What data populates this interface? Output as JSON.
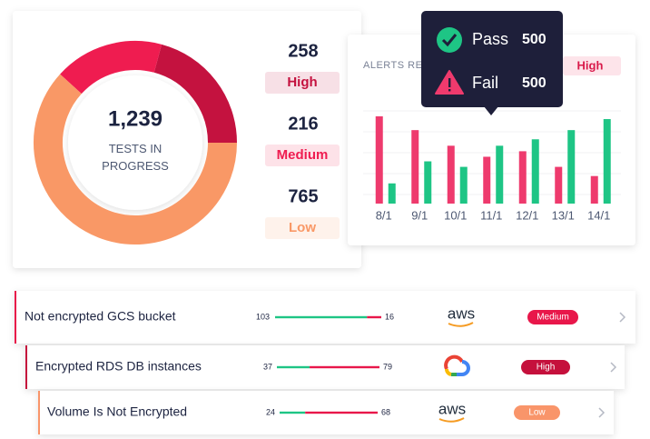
{
  "chart_data": [
    {
      "type": "pie",
      "center_value": "1,239",
      "center_label": "TESTS IN PROGRESS",
      "categories": [
        "High",
        "Medium",
        "Low"
      ],
      "values": [
        258,
        216,
        765
      ],
      "colors": [
        "#c4123f",
        "#ef1c50",
        "#f99866"
      ]
    },
    {
      "type": "bar",
      "title": "ALERTS RE",
      "filter": "High",
      "categories": [
        "8/1",
        "9/1",
        "10/1",
        "11/1",
        "12/1",
        "13/1",
        "14/1"
      ],
      "grid": true,
      "series": [
        {
          "name": "Fail",
          "color": "#ee3a6d",
          "values": [
            95,
            80,
            63,
            51,
            57,
            40,
            30
          ],
          "tooltip_value": 500
        },
        {
          "name": "Pass",
          "color": "#1ec585",
          "values": [
            22,
            46,
            40,
            63,
            70,
            80,
            92
          ],
          "tooltip_value": 500
        }
      ]
    }
  ],
  "findings": {
    "rows": [
      {
        "name": "Not encrypted GCS bucket",
        "passed": 103,
        "failed": 16,
        "provider": "aws",
        "severity": "Medium",
        "color": "#e8174a"
      },
      {
        "name": "Encrypted RDS DB instances",
        "passed": 37,
        "failed": 79,
        "severity": "High",
        "color": "#c5103c"
      },
      {
        "name": "Volume Is Not Encrypted",
        "passed": 24,
        "failed": 68,
        "provider": "aws",
        "severity": "Low",
        "color": "#f9956a"
      }
    ]
  }
}
